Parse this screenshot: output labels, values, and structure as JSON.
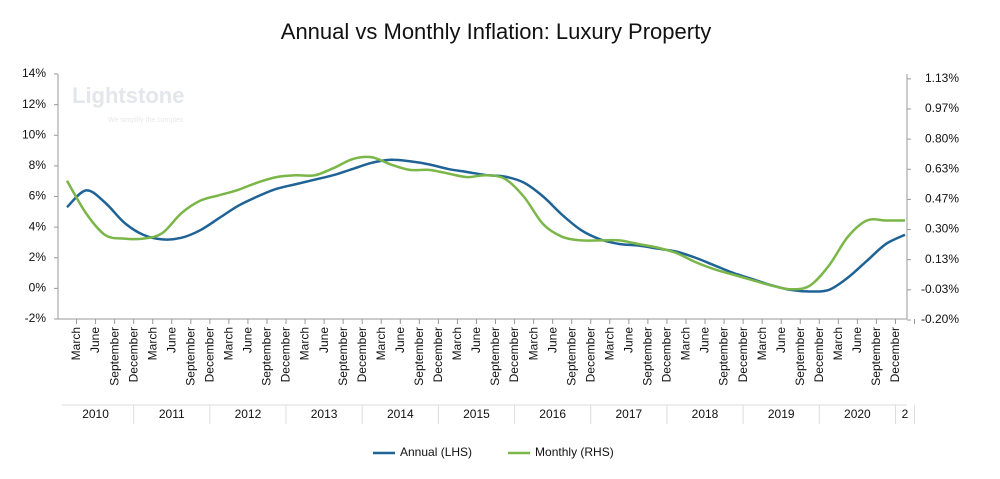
{
  "chart_data": {
    "type": "line",
    "title": "Annual vs Monthly Inflation: Luxury Property",
    "watermark": "Lightstone",
    "watermark_tagline": "We simplify the complex",
    "categories": [
      "March",
      "June",
      "September",
      "December",
      "March",
      "June",
      "September",
      "December",
      "March",
      "June",
      "September",
      "December",
      "March",
      "June",
      "September",
      "December",
      "March",
      "June",
      "September",
      "December",
      "March",
      "June",
      "September",
      "December",
      "March",
      "June",
      "September",
      "December",
      "March",
      "June",
      "September",
      "December",
      "March",
      "June",
      "September",
      "December",
      "March",
      "June",
      "September",
      "December",
      "March",
      "June",
      "September",
      "December",
      null
    ],
    "year_labels": [
      "2010",
      "2011",
      "2012",
      "2013",
      "2014",
      "2015",
      "2016",
      "2017",
      "2018",
      "2019",
      "2020",
      "2"
    ],
    "series": [
      {
        "name": "Annual (LHS)",
        "color": "#1f6396",
        "axis": "y",
        "values": [
          5.3,
          6.4,
          5.6,
          4.3,
          3.5,
          3.2,
          3.3,
          3.8,
          4.6,
          5.4,
          6.0,
          6.5,
          6.8,
          7.1,
          7.4,
          7.8,
          8.2,
          8.4,
          8.3,
          8.1,
          7.8,
          7.6,
          7.4,
          7.3,
          6.9,
          6.0,
          4.8,
          3.8,
          3.2,
          2.9,
          2.8,
          2.6,
          2.4,
          2.0,
          1.5,
          1.0,
          0.6,
          0.2,
          -0.1,
          -0.2,
          -0.1,
          0.7,
          1.8,
          2.9,
          3.5
        ]
      },
      {
        "name": "Monthly (RHS)",
        "color": "#7ab648",
        "axis": "y2",
        "values": [
          0.57,
          0.39,
          0.27,
          0.25,
          0.25,
          0.28,
          0.39,
          0.46,
          0.49,
          0.52,
          0.56,
          0.59,
          0.6,
          0.6,
          0.64,
          0.69,
          0.7,
          0.66,
          0.63,
          0.63,
          0.61,
          0.59,
          0.6,
          0.58,
          0.48,
          0.33,
          0.26,
          0.24,
          0.24,
          0.24,
          0.22,
          0.2,
          0.17,
          0.12,
          0.08,
          0.05,
          0.02,
          -0.01,
          -0.03,
          -0.01,
          0.1,
          0.26,
          0.35,
          0.35,
          0.35
        ]
      }
    ],
    "ylim": [
      -2,
      14
    ],
    "yticks": [
      {
        "value": -2,
        "label": "-2%"
      },
      {
        "value": 0,
        "label": "0%"
      },
      {
        "value": 2,
        "label": "2%"
      },
      {
        "value": 4,
        "label": "4%"
      },
      {
        "value": 6,
        "label": "6%"
      },
      {
        "value": 8,
        "label": "8%"
      },
      {
        "value": 10,
        "label": "10%"
      },
      {
        "value": 12,
        "label": "12%"
      },
      {
        "value": 14,
        "label": "14%"
      }
    ],
    "y2lim": [
      -0.2,
      1.16
    ],
    "y2ticks": [
      {
        "value": -0.2,
        "label": "-0.20%"
      },
      {
        "value": -0.0333,
        "label": "-0.03%"
      },
      {
        "value": 0.1333,
        "label": "0.13%"
      },
      {
        "value": 0.3,
        "label": "0.30%"
      },
      {
        "value": 0.4667,
        "label": "0.47%"
      },
      {
        "value": 0.6333,
        "label": "0.63%"
      },
      {
        "value": 0.8,
        "label": "0.80%"
      },
      {
        "value": 0.9667,
        "label": "0.97%"
      },
      {
        "value": 1.1333,
        "label": "1.13%"
      }
    ],
    "legend": "bottom"
  }
}
